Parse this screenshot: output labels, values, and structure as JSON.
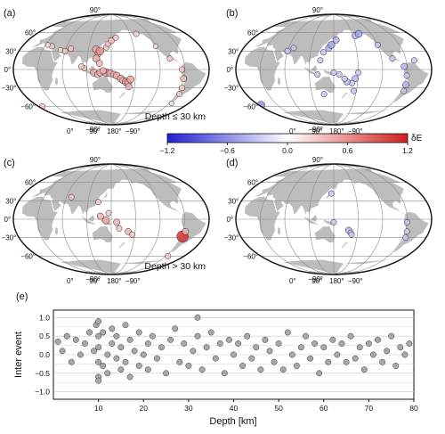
{
  "panels": [
    {
      "id": "a",
      "label": "(a)",
      "depth_label": "Depth ≤ 30 km",
      "color": "red",
      "lat_labels": [
        "90°",
        "60°",
        "30°",
        "0°",
        "−30°",
        "−60°",
        "−90°"
      ],
      "lon_labels": [
        "0°",
        "90°",
        "180°",
        "−90°"
      ]
    },
    {
      "id": "b",
      "label": "(b)",
      "depth_label": "",
      "color": "blue",
      "lat_labels": [
        "90°",
        "60°",
        "30°",
        "0°",
        "−30°",
        "−60°",
        "−90°"
      ],
      "lon_labels": [
        "0°",
        "90°",
        "180°",
        "−90°"
      ]
    },
    {
      "id": "c",
      "label": "(c)",
      "depth_label": "Depth > 30 km",
      "color": "red",
      "lat_labels": [
        "90°",
        "60°",
        "30°",
        "0°",
        "−30°",
        "−60°",
        "−90°"
      ],
      "lon_labels": [
        "0°",
        "90°",
        "180°",
        "−90°"
      ]
    },
    {
      "id": "d",
      "label": "(d)",
      "depth_label": "",
      "color": "blue",
      "lat_labels": [
        "90°",
        "60°",
        "30°",
        "0°",
        "−30°",
        "−60°",
        "−90°"
      ],
      "lon_labels": [
        "0°",
        "90°",
        "180°",
        "−90°"
      ]
    }
  ],
  "colorbar": {
    "label": "δE",
    "ticks": [
      "−1.2",
      "−0.6",
      "0.0",
      "0.6",
      "1.2"
    ],
    "min": -1.2,
    "max": 1.2,
    "colors": {
      "low": "#1f1fd0",
      "mid": "#ffffff",
      "high": "#d01f1f"
    }
  },
  "chart_data": [
    {
      "type": "scatter",
      "panel": "(a)",
      "title": "",
      "subtitle": "Depth ≤ 30 km",
      "projection": "world map",
      "series": [
        {
          "color": "red",
          "points": [
            {
              "lon": 120,
              "lat": 33,
              "v": 0.5
            },
            {
              "lon": 125,
              "lat": 26,
              "v": 0.4
            },
            {
              "lon": 128,
              "lat": 30,
              "v": 0.6
            },
            {
              "lon": 122,
              "lat": 18,
              "v": 0.5
            },
            {
              "lon": 128,
              "lat": 10,
              "v": 0.4
            },
            {
              "lon": 140,
              "lat": 36,
              "v": 0.3
            },
            {
              "lon": 143,
              "lat": 42,
              "v": 0.3
            },
            {
              "lon": 150,
              "lat": 47,
              "v": 0.4
            },
            {
              "lon": 160,
              "lat": 52,
              "v": 0.3
            },
            {
              "lon": 118,
              "lat": -5,
              "v": 0.5
            },
            {
              "lon": 125,
              "lat": -8,
              "v": 0.4
            },
            {
              "lon": 130,
              "lat": -5,
              "v": 0.5
            },
            {
              "lon": 140,
              "lat": -5,
              "v": 0.6
            },
            {
              "lon": 148,
              "lat": -6,
              "v": 0.5
            },
            {
              "lon": 155,
              "lat": -8,
              "v": 0.4
            },
            {
              "lon": 160,
              "lat": -10,
              "v": 0.5
            },
            {
              "lon": 168,
              "lat": -15,
              "v": 0.5
            },
            {
              "lon": 172,
              "lat": -18,
              "v": 0.4
            },
            {
              "lon": 178,
              "lat": -20,
              "v": 0.6
            },
            {
              "lon": -178,
              "lat": -22,
              "v": 0.5
            },
            {
              "lon": -176,
              "lat": -28,
              "v": 0.4
            },
            {
              "lon": -174,
              "lat": -16,
              "v": 0.5
            },
            {
              "lon": 135,
              "lat": -2,
              "v": 0.4
            },
            {
              "lon": 100,
              "lat": 2,
              "v": 0.3
            },
            {
              "lon": 95,
              "lat": 5,
              "v": 0.3
            },
            {
              "lon": 70,
              "lat": 34,
              "v": 0.3
            },
            {
              "lon": 60,
              "lat": 30,
              "v": 0.3
            },
            {
              "lon": 50,
              "lat": 32,
              "v": 0.2
            },
            {
              "lon": 30,
              "lat": 38,
              "v": 0.3
            },
            {
              "lon": 20,
              "lat": 40,
              "v": 0.2
            },
            {
              "lon": -75,
              "lat": -15,
              "v": 0.4
            },
            {
              "lon": -72,
              "lat": -30,
              "v": 0.3
            },
            {
              "lon": -70,
              "lat": -40,
              "v": 0.3
            },
            {
              "lon": -80,
              "lat": 0,
              "v": 0.3
            },
            {
              "lon": -100,
              "lat": 18,
              "v": 0.3
            },
            {
              "lon": -120,
              "lat": 38,
              "v": 0.2
            },
            {
              "lon": -150,
              "lat": 58,
              "v": 0.3
            },
            {
              "lon": -70,
              "lat": -55,
              "v": 0.2
            },
            {
              "lon": -20,
              "lat": -60,
              "v": 0.3
            }
          ]
        }
      ]
    },
    {
      "type": "scatter",
      "panel": "(b)",
      "title": "",
      "projection": "world map",
      "series": [
        {
          "color": "blue",
          "points": [
            {
              "lon": -160,
              "lat": 55,
              "v": -0.4
            },
            {
              "lon": -150,
              "lat": 58,
              "v": -0.5
            },
            {
              "lon": -120,
              "lat": 40,
              "v": -0.3
            },
            {
              "lon": -100,
              "lat": 18,
              "v": -0.3
            },
            {
              "lon": -80,
              "lat": 5,
              "v": -0.4
            },
            {
              "lon": -75,
              "lat": -10,
              "v": -0.3
            },
            {
              "lon": -72,
              "lat": -25,
              "v": -0.4
            },
            {
              "lon": -70,
              "lat": -35,
              "v": -0.3
            },
            {
              "lon": -60,
              "lat": 15,
              "v": -0.3
            },
            {
              "lon": -25,
              "lat": -58,
              "v": -0.6
            },
            {
              "lon": -165,
              "lat": -5,
              "v": -0.3
            },
            {
              "lon": -170,
              "lat": -15,
              "v": -0.4
            },
            {
              "lon": -175,
              "lat": -22,
              "v": -0.3
            },
            {
              "lon": 175,
              "lat": -20,
              "v": -0.4
            },
            {
              "lon": 170,
              "lat": -15,
              "v": -0.3
            },
            {
              "lon": 160,
              "lat": -8,
              "v": -0.3
            },
            {
              "lon": 150,
              "lat": -5,
              "v": -0.3
            },
            {
              "lon": 140,
              "lat": 35,
              "v": -0.4
            },
            {
              "lon": 145,
              "lat": 40,
              "v": -0.5
            },
            {
              "lon": 155,
              "lat": 48,
              "v": -0.4
            },
            {
              "lon": 130,
              "lat": 28,
              "v": -0.3
            },
            {
              "lon": 125,
              "lat": 15,
              "v": -0.3
            },
            {
              "lon": 120,
              "lat": -8,
              "v": -0.3
            },
            {
              "lon": 130,
              "lat": -40,
              "v": -0.3
            },
            {
              "lon": 70,
              "lat": 35,
              "v": -0.3
            },
            {
              "lon": 60,
              "lat": 30,
              "v": -0.3
            },
            {
              "lon": -170,
              "lat": -35,
              "v": -0.3
            }
          ]
        }
      ]
    },
    {
      "type": "scatter",
      "panel": "(c)",
      "title": "",
      "subtitle": "Depth > 30 km",
      "projection": "world map",
      "series": [
        {
          "color": "red",
          "points": [
            {
              "lon": 130,
              "lat": 5,
              "v": 0.4
            },
            {
              "lon": 140,
              "lat": -2,
              "v": 0.5
            },
            {
              "lon": 145,
              "lat": 10,
              "v": 0.3
            },
            {
              "lon": 160,
              "lat": -5,
              "v": 0.4
            },
            {
              "lon": 165,
              "lat": -15,
              "v": 0.3
            },
            {
              "lon": -178,
              "lat": -20,
              "v": 0.4
            },
            {
              "lon": -170,
              "lat": -25,
              "v": 0.3
            },
            {
              "lon": -72,
              "lat": -28,
              "v": 1.1
            },
            {
              "lon": -70,
              "lat": -20,
              "v": 0.4
            },
            {
              "lon": 70,
              "lat": 36,
              "v": 0.3
            },
            {
              "lon": 125,
              "lat": 28,
              "v": 0.3
            },
            {
              "lon": -70,
              "lat": -60,
              "v": 0.3
            }
          ]
        }
      ]
    },
    {
      "type": "scatter",
      "panel": "(d)",
      "title": "",
      "projection": "world map",
      "series": [
        {
          "color": "blue",
          "points": [
            {
              "lon": 145,
              "lat": 42,
              "v": -0.3
            },
            {
              "lon": 150,
              "lat": -5,
              "v": -0.3
            },
            {
              "lon": 178,
              "lat": -18,
              "v": -0.4
            },
            {
              "lon": -178,
              "lat": -22,
              "v": -0.3
            },
            {
              "lon": -176,
              "lat": -25,
              "v": -0.3
            },
            {
              "lon": -72,
              "lat": -20,
              "v": -0.3
            },
            {
              "lon": -75,
              "lat": -5,
              "v": -0.3
            },
            {
              "lon": -70,
              "lat": -30,
              "v": -0.3
            }
          ]
        }
      ]
    },
    {
      "type": "scatter",
      "panel": "(e)",
      "title": "",
      "xlabel": "Depth [km]",
      "ylabel": "Inter event",
      "xlim": [
        0,
        80
      ],
      "ylim": [
        -1.2,
        1.2
      ],
      "xticks": [
        "10",
        "20",
        "30",
        "40",
        "50",
        "60",
        "70",
        "80"
      ],
      "yticks": [
        "1.0",
        "0.5",
        "0.0",
        "−0.5",
        "−1.0"
      ],
      "grid": true,
      "series": [
        {
          "color": "#a8a8a8",
          "points": [
            [
              1,
              0.35
            ],
            [
              2,
              0.1
            ],
            [
              3,
              0.5
            ],
            [
              4,
              -0.2
            ],
            [
              5,
              0.4
            ],
            [
              6,
              0.0
            ],
            [
              7,
              0.3
            ],
            [
              8,
              0.6
            ],
            [
              9,
              0.1
            ],
            [
              9.5,
              0.8
            ],
            [
              10,
              -0.6
            ],
            [
              10,
              0.5
            ],
            [
              10,
              -0.2
            ],
            [
              10,
              0.9
            ],
            [
              10,
              -0.7
            ],
            [
              10,
              0.2
            ],
            [
              11,
              -0.3
            ],
            [
              11,
              0.6
            ],
            [
              12,
              0.0
            ],
            [
              12,
              -0.5
            ],
            [
              13,
              0.3
            ],
            [
              13,
              0.7
            ],
            [
              14,
              -0.1
            ],
            [
              14,
              0.5
            ],
            [
              15,
              -0.4
            ],
            [
              15,
              0.2
            ],
            [
              16,
              0.8
            ],
            [
              16,
              -0.2
            ],
            [
              17,
              0.4
            ],
            [
              17,
              -0.6
            ],
            [
              18,
              0.1
            ],
            [
              19,
              -0.3
            ],
            [
              19,
              0.6
            ],
            [
              20,
              0.0
            ],
            [
              21,
              0.3
            ],
            [
              21,
              -0.4
            ],
            [
              22,
              0.5
            ],
            [
              23,
              -0.1
            ],
            [
              24,
              0.2
            ],
            [
              25,
              -0.5
            ],
            [
              26,
              0.4
            ],
            [
              27,
              0.7
            ],
            [
              28,
              -0.2
            ],
            [
              29,
              0.3
            ],
            [
              30,
              -0.3
            ],
            [
              31,
              0.1
            ],
            [
              32,
              0.5
            ],
            [
              32,
              1.0
            ],
            [
              33,
              -0.4
            ],
            [
              34,
              0.2
            ],
            [
              35,
              0.6
            ],
            [
              36,
              -0.1
            ],
            [
              37,
              0.3
            ],
            [
              38,
              -0.5
            ],
            [
              39,
              0.4
            ],
            [
              40,
              0.0
            ],
            [
              41,
              0.3
            ],
            [
              42,
              -0.3
            ],
            [
              43,
              0.5
            ],
            [
              44,
              -0.1
            ],
            [
              45,
              0.2
            ],
            [
              46,
              -0.4
            ],
            [
              47,
              0.4
            ],
            [
              48,
              0.1
            ],
            [
              49,
              -0.2
            ],
            [
              50,
              0.3
            ],
            [
              51,
              -0.4
            ],
            [
              52,
              0.6
            ],
            [
              53,
              0.0
            ],
            [
              54,
              -0.3
            ],
            [
              55,
              0.2
            ],
            [
              56,
              0.5
            ],
            [
              57,
              -0.1
            ],
            [
              58,
              0.3
            ],
            [
              59,
              -0.5
            ],
            [
              60,
              0.2
            ],
            [
              61,
              -0.2
            ],
            [
              62,
              0.4
            ],
            [
              63,
              0.0
            ],
            [
              64,
              0.3
            ],
            [
              65,
              -0.2
            ],
            [
              66,
              0.5
            ],
            [
              67,
              -0.1
            ],
            [
              68,
              0.2
            ],
            [
              69,
              -0.4
            ],
            [
              70,
              0.3
            ],
            [
              71,
              0.0
            ],
            [
              72,
              0.4
            ],
            [
              73,
              -0.2
            ],
            [
              74,
              0.1
            ],
            [
              75,
              0.5
            ],
            [
              76,
              -0.3
            ],
            [
              77,
              0.2
            ],
            [
              78,
              0.0
            ],
            [
              79,
              0.3
            ]
          ]
        }
      ]
    }
  ]
}
